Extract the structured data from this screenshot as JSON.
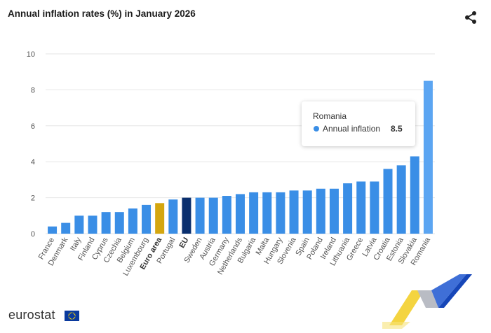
{
  "header": {
    "title": "Annual inflation rates (%) in January 2026"
  },
  "icons": {
    "share": "share-icon",
    "flag": "eu-flag-icon"
  },
  "footer": {
    "logo_text": "eurostat"
  },
  "tooltip": {
    "title": "Romania",
    "series": "Annual inflation",
    "value": "8.5"
  },
  "colors": {
    "bar": "#3a8ee6",
    "bar_hover": "#5ba5f2",
    "euro_area": "#d4a60f",
    "eu": "#0a2f6e",
    "grid": "#e6e6e6",
    "axis_text": "#555555",
    "deco_yellow": "#f2cd1f",
    "deco_blue": "#1646b8"
  },
  "chart_data": {
    "type": "bar",
    "title": "Annual inflation rates (%) in January 2026",
    "xlabel": "",
    "ylabel": "",
    "ylim": [
      0,
      10
    ],
    "yticks": [
      0,
      2,
      4,
      6,
      8,
      10
    ],
    "grid": true,
    "categories": [
      "France",
      "Denmark",
      "Italy",
      "Finland",
      "Cyprus",
      "Czechia",
      "Belgium",
      "Luxembourg",
      "Euro area",
      "Portugal",
      "EU",
      "Sweden",
      "Austria",
      "Germany",
      "Netherlands",
      "Bulgaria",
      "Malta",
      "Hungary",
      "Slovenia",
      "Spain",
      "Poland",
      "Ireland",
      "Lithuania",
      "Greece",
      "Latvia",
      "Croatia",
      "Estonia",
      "Slovakia",
      "Romania"
    ],
    "bold_categories": [
      "Euro area",
      "EU"
    ],
    "highlighted_category": "Romania",
    "series": [
      {
        "name": "Annual inflation",
        "values": [
          0.4,
          0.6,
          1.0,
          1.0,
          1.2,
          1.2,
          1.4,
          1.6,
          1.7,
          1.9,
          2.0,
          2.0,
          2.0,
          2.1,
          2.2,
          2.3,
          2.3,
          2.3,
          2.4,
          2.4,
          2.5,
          2.5,
          2.8,
          2.9,
          2.9,
          3.6,
          3.8,
          4.3,
          8.5
        ]
      }
    ]
  }
}
